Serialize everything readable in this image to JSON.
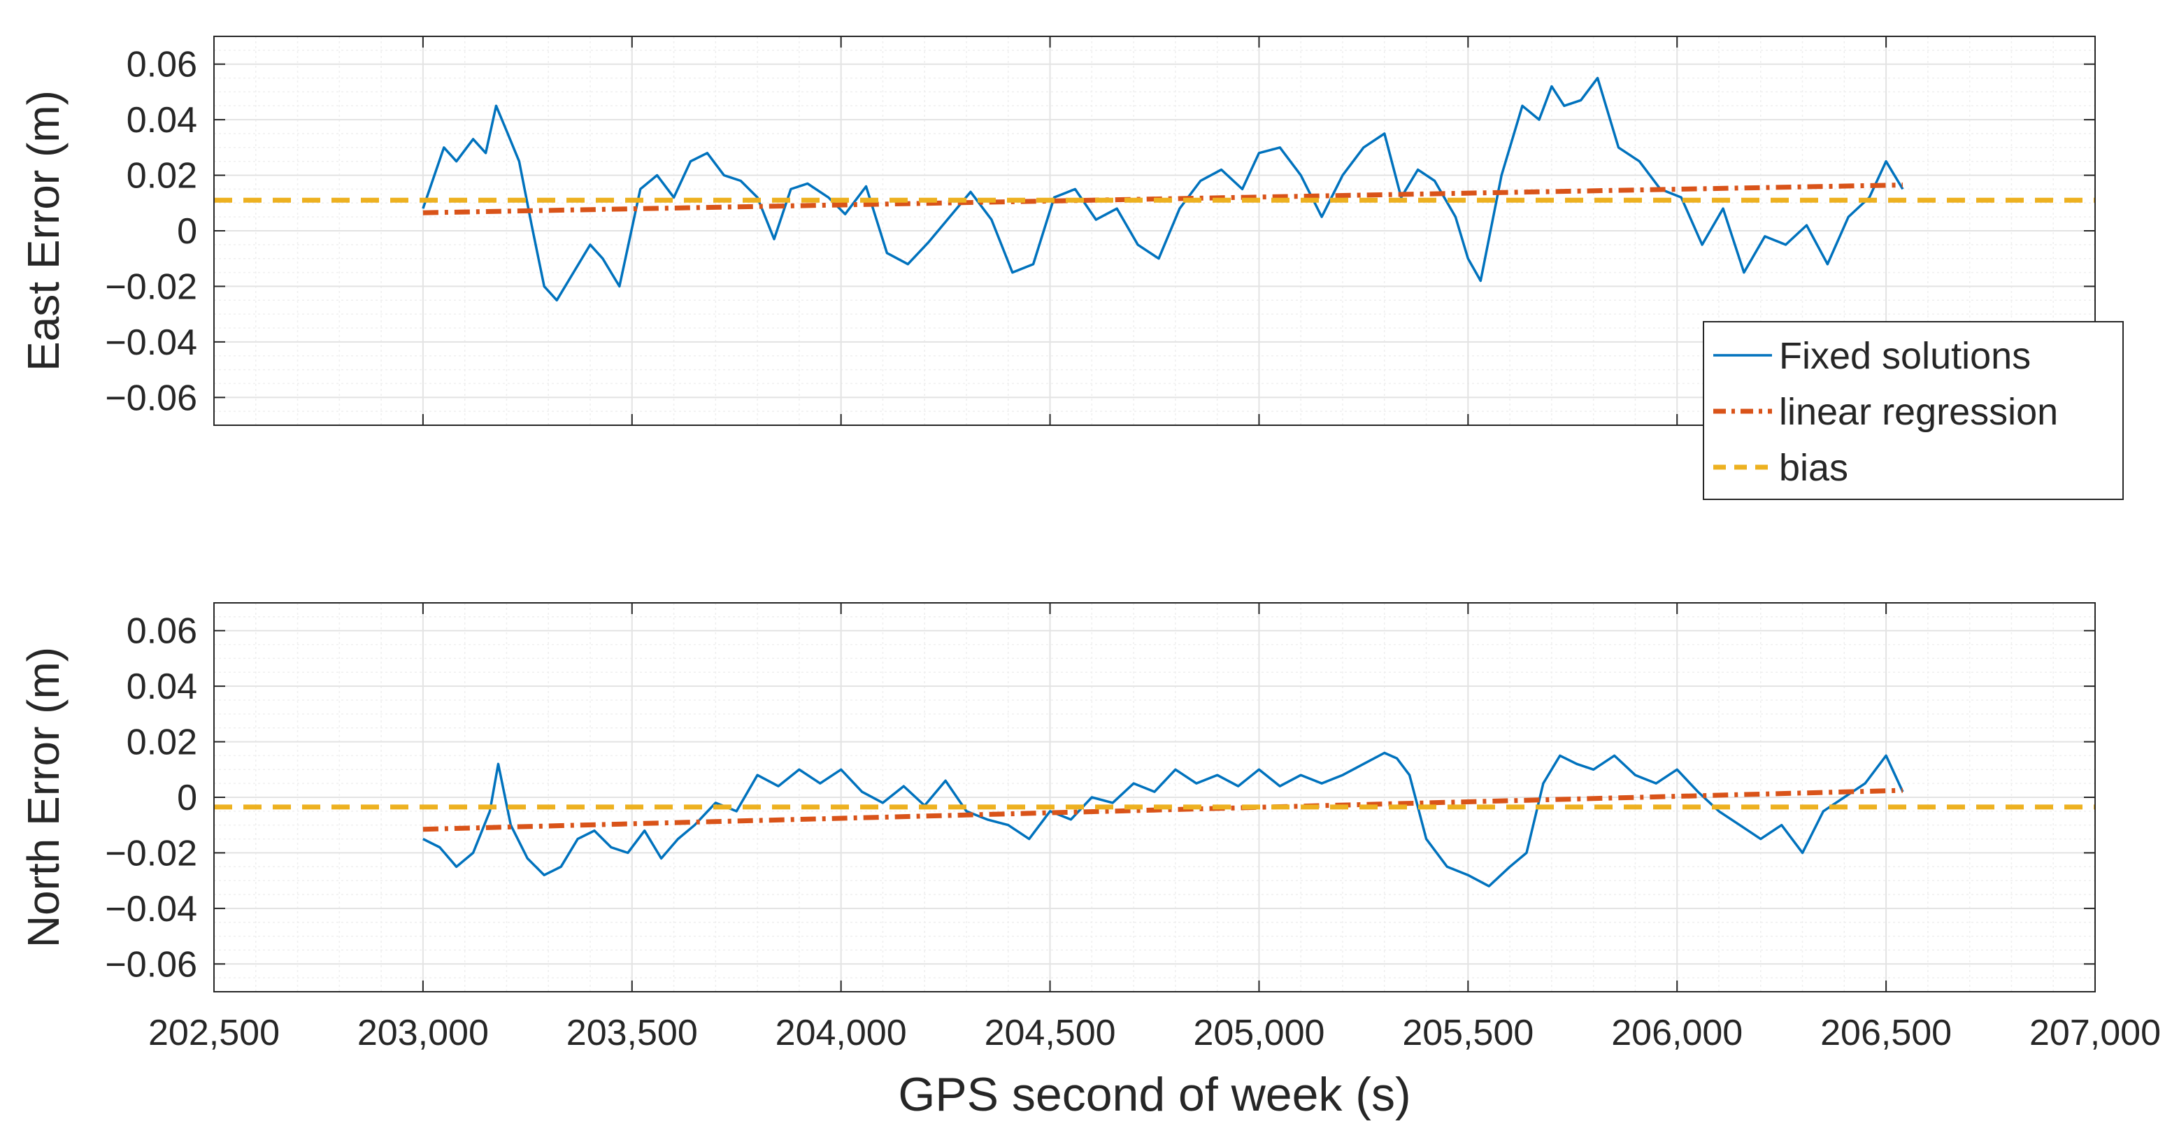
{
  "colors": {
    "fixed": "#0072BD",
    "regression": "#D95319",
    "bias": "#EDB120",
    "axis": "#262626",
    "grid": "#e3e3e3"
  },
  "x_axis": {
    "label": "GPS second of week (s)",
    "range": [
      202500,
      207000
    ],
    "ticks": [
      202500,
      203000,
      203500,
      204000,
      204500,
      205000,
      205500,
      206000,
      206500,
      207000
    ],
    "tick_labels": [
      "202,500",
      "203,000",
      "203,500",
      "204,000",
      "204,500",
      "205,000",
      "205,500",
      "206,000",
      "206,500",
      "207,000"
    ]
  },
  "legend": {
    "entries": [
      "Fixed solutions",
      "linear regression",
      "bias"
    ]
  },
  "chart_data": [
    {
      "type": "line",
      "ylabel": "East Error (m)",
      "ylim": [
        -0.07,
        0.07
      ],
      "yticks": [
        -0.06,
        -0.04,
        -0.02,
        0,
        0.02,
        0.04,
        0.06
      ],
      "ytick_labels": [
        "−0.06",
        "−0.04",
        "−0.02",
        "0",
        "0.02",
        "0.04",
        "0.06"
      ],
      "grid": true,
      "legend_position": "bottom-right outside",
      "series": [
        {
          "name": "Fixed solutions",
          "x": [
            203000,
            203050,
            203080,
            203120,
            203150,
            203175,
            203200,
            203230,
            203260,
            203290,
            203320,
            203360,
            203400,
            203430,
            203470,
            203520,
            203560,
            203600,
            203640,
            203680,
            203720,
            203760,
            203800,
            203840,
            203880,
            203920,
            203970,
            204010,
            204060,
            204110,
            204160,
            204210,
            204260,
            204310,
            204360,
            204410,
            204460,
            204510,
            204560,
            204610,
            204660,
            204710,
            204760,
            204810,
            204860,
            204910,
            204960,
            205000,
            205050,
            205100,
            205150,
            205200,
            205250,
            205300,
            205340,
            205380,
            205420,
            205470,
            205500,
            205530,
            205580,
            205630,
            205670,
            205700,
            205730,
            205770,
            205810,
            205860,
            205910,
            205960,
            206010,
            206060,
            206110,
            206160,
            206210,
            206260,
            206310,
            206360,
            206410,
            206460,
            206500,
            206540
          ],
          "values": [
            0.008,
            0.03,
            0.025,
            0.033,
            0.028,
            0.045,
            0.036,
            0.025,
            0.002,
            -0.02,
            -0.025,
            -0.015,
            -0.005,
            -0.01,
            -0.02,
            0.015,
            0.02,
            0.012,
            0.025,
            0.028,
            0.02,
            0.018,
            0.012,
            -0.003,
            0.015,
            0.017,
            0.012,
            0.006,
            0.016,
            -0.008,
            -0.012,
            -0.004,
            0.005,
            0.014,
            0.004,
            -0.015,
            -0.012,
            0.012,
            0.015,
            0.004,
            0.008,
            -0.005,
            -0.01,
            0.008,
            0.018,
            0.022,
            0.015,
            0.028,
            0.03,
            0.02,
            0.005,
            0.02,
            0.03,
            0.035,
            0.012,
            0.022,
            0.018,
            0.005,
            -0.01,
            -0.018,
            0.02,
            0.045,
            0.04,
            0.052,
            0.045,
            0.047,
            0.055,
            0.03,
            0.025,
            0.015,
            0.012,
            -0.005,
            0.008,
            -0.015,
            -0.002,
            -0.005,
            0.002,
            -0.012,
            0.005,
            0.012,
            0.025,
            0.015
          ]
        },
        {
          "name": "linear regression",
          "x": [
            203000,
            206540
          ],
          "values": [
            0.0065,
            0.0165
          ]
        },
        {
          "name": "bias",
          "x": [
            202500,
            207000
          ],
          "values": [
            0.011,
            0.011
          ]
        }
      ]
    },
    {
      "type": "line",
      "ylabel": "North Error (m)",
      "ylim": [
        -0.07,
        0.07
      ],
      "yticks": [
        -0.06,
        -0.04,
        -0.02,
        0,
        0.02,
        0.04,
        0.06
      ],
      "ytick_labels": [
        "−0.06",
        "−0.04",
        "−0.02",
        "0",
        "0.02",
        "0.04",
        "0.06"
      ],
      "grid": true,
      "series": [
        {
          "name": "Fixed solutions",
          "x": [
            203000,
            203040,
            203080,
            203120,
            203160,
            203180,
            203210,
            203250,
            203290,
            203330,
            203370,
            203410,
            203450,
            203490,
            203530,
            203570,
            203610,
            203650,
            203700,
            203750,
            203800,
            203850,
            203900,
            203950,
            204000,
            204050,
            204100,
            204150,
            204200,
            204250,
            204300,
            204350,
            204400,
            204450,
            204500,
            204550,
            204600,
            204650,
            204700,
            204750,
            204800,
            204850,
            204900,
            204950,
            205000,
            205050,
            205100,
            205150,
            205200,
            205250,
            205300,
            205330,
            205360,
            205400,
            205450,
            205500,
            205550,
            205600,
            205640,
            205680,
            205720,
            205760,
            205800,
            205850,
            205900,
            205950,
            206000,
            206050,
            206100,
            206150,
            206200,
            206250,
            206300,
            206350,
            206400,
            206450,
            206500,
            206540
          ],
          "values": [
            -0.015,
            -0.018,
            -0.025,
            -0.02,
            -0.005,
            0.012,
            -0.01,
            -0.022,
            -0.028,
            -0.025,
            -0.015,
            -0.012,
            -0.018,
            -0.02,
            -0.012,
            -0.022,
            -0.015,
            -0.01,
            -0.002,
            -0.005,
            0.008,
            0.004,
            0.01,
            0.005,
            0.01,
            0.002,
            -0.002,
            0.004,
            -0.003,
            0.006,
            -0.005,
            -0.008,
            -0.01,
            -0.015,
            -0.005,
            -0.008,
            0.0,
            -0.002,
            0.005,
            0.002,
            0.01,
            0.005,
            0.008,
            0.004,
            0.01,
            0.004,
            0.008,
            0.005,
            0.008,
            0.012,
            0.016,
            0.014,
            0.008,
            -0.015,
            -0.025,
            -0.028,
            -0.032,
            -0.025,
            -0.02,
            0.005,
            0.015,
            0.012,
            0.01,
            0.015,
            0.008,
            0.005,
            0.01,
            0.002,
            -0.005,
            -0.01,
            -0.015,
            -0.01,
            -0.02,
            -0.005,
            0.0,
            0.005,
            0.015,
            0.002
          ]
        },
        {
          "name": "linear regression",
          "x": [
            203000,
            206540
          ],
          "values": [
            -0.0115,
            0.0025
          ]
        },
        {
          "name": "bias",
          "x": [
            202500,
            207000
          ],
          "values": [
            -0.0035,
            -0.0035
          ]
        }
      ]
    }
  ]
}
